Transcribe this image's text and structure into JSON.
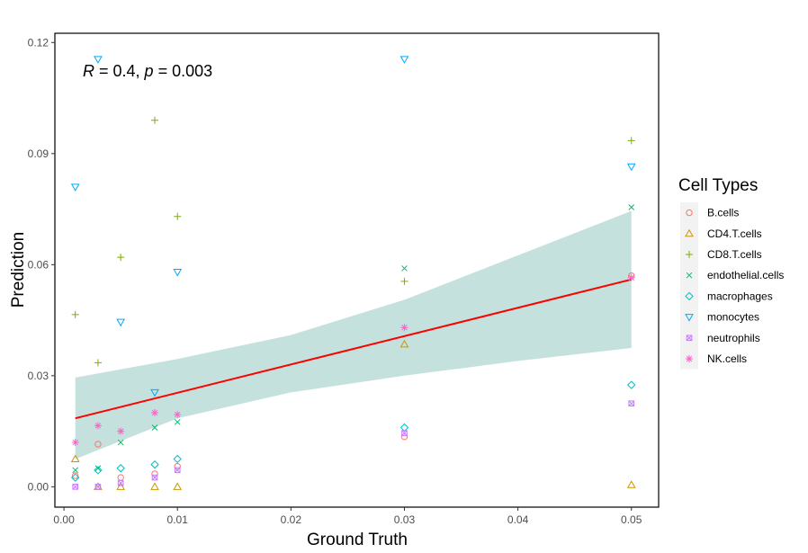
{
  "chart_data": {
    "type": "scatter",
    "xlabel": "Ground Truth",
    "ylabel": "Prediction",
    "xlim": [
      -0.0008,
      0.0524
    ],
    "ylim": [
      -0.0055,
      0.1225
    ],
    "xticks": [
      "0.00",
      "0.01",
      "0.02",
      "0.03",
      "0.04",
      "0.05"
    ],
    "xtick_values": [
      0,
      0.01,
      0.02,
      0.03,
      0.04,
      0.05
    ],
    "yticks": [
      "0.00",
      "0.03",
      "0.06",
      "0.09",
      "0.12"
    ],
    "ytick_values": [
      0,
      0.03,
      0.06,
      0.09,
      0.12
    ],
    "grid": false,
    "legend_position": "right",
    "annotation": {
      "r_sym": "R",
      "r_text": " = 0.4, ",
      "p_sym": "p",
      "p_text": " = 0.003"
    },
    "legend_title": "Cell Types",
    "regression": {
      "start": [
        0.001,
        0.0185
      ],
      "end": [
        0.05,
        0.056
      ],
      "color": "#ff0000",
      "band_color": "#8cc4bb",
      "band_upper": [
        [
          0.001,
          0.0295
        ],
        [
          0.01,
          0.0345
        ],
        [
          0.02,
          0.041
        ],
        [
          0.03,
          0.0505
        ],
        [
          0.04,
          0.0625
        ],
        [
          0.05,
          0.0745
        ]
      ],
      "band_lower": [
        [
          0.001,
          0.0075
        ],
        [
          0.01,
          0.0185
        ],
        [
          0.02,
          0.0255
        ],
        [
          0.03,
          0.03
        ],
        [
          0.04,
          0.034
        ],
        [
          0.05,
          0.0375
        ]
      ]
    },
    "series": [
      {
        "name": "B.cells",
        "shape": "circle",
        "color": "#f8766d",
        "points": [
          [
            0.001,
            0.003
          ],
          [
            0.003,
            0.0115
          ],
          [
            0.005,
            0.0025
          ],
          [
            0.008,
            0.0035
          ],
          [
            0.01,
            0.0055
          ],
          [
            0.03,
            0.0135
          ],
          [
            0.05,
            0.057
          ]
        ]
      },
      {
        "name": "CD4.T.cells",
        "shape": "triangle-up",
        "color": "#cd9600",
        "points": [
          [
            0.001,
            0.0075
          ],
          [
            0.003,
            0.0
          ],
          [
            0.005,
            0.0
          ],
          [
            0.008,
            0.0
          ],
          [
            0.01,
            0.0
          ],
          [
            0.03,
            0.0385
          ],
          [
            0.05,
            0.0005
          ]
        ]
      },
      {
        "name": "CD8.T.cells",
        "shape": "plus",
        "color": "#7cae00",
        "points": [
          [
            0.001,
            0.0465
          ],
          [
            0.003,
            0.0335
          ],
          [
            0.005,
            0.062
          ],
          [
            0.008,
            0.099
          ],
          [
            0.01,
            0.073
          ],
          [
            0.03,
            0.0555
          ],
          [
            0.05,
            0.0935
          ]
        ]
      },
      {
        "name": "endothelial.cells",
        "shape": "cross",
        "color": "#00be67",
        "points": [
          [
            0.001,
            0.0045
          ],
          [
            0.003,
            0.005
          ],
          [
            0.005,
            0.012
          ],
          [
            0.008,
            0.016
          ],
          [
            0.01,
            0.0175
          ],
          [
            0.03,
            0.059
          ],
          [
            0.05,
            0.0755
          ]
        ]
      },
      {
        "name": "macrophages",
        "shape": "diamond",
        "color": "#00bfc4",
        "points": [
          [
            0.001,
            0.0025
          ],
          [
            0.003,
            0.0045
          ],
          [
            0.005,
            0.005
          ],
          [
            0.008,
            0.006
          ],
          [
            0.01,
            0.0075
          ],
          [
            0.03,
            0.016
          ],
          [
            0.05,
            0.0275
          ]
        ]
      },
      {
        "name": "monocytes",
        "shape": "triangle-down",
        "color": "#00a9ff",
        "points": [
          [
            0.001,
            0.081
          ],
          [
            0.003,
            0.1155
          ],
          [
            0.005,
            0.0445
          ],
          [
            0.008,
            0.0255
          ],
          [
            0.01,
            0.058
          ],
          [
            0.03,
            0.1155
          ],
          [
            0.05,
            0.0865
          ]
        ]
      },
      {
        "name": "neutrophils",
        "shape": "square-x",
        "color": "#c77cff",
        "points": [
          [
            0.001,
            0.0
          ],
          [
            0.003,
            0.0
          ],
          [
            0.005,
            0.001
          ],
          [
            0.008,
            0.0025
          ],
          [
            0.01,
            0.0045
          ],
          [
            0.03,
            0.0145
          ],
          [
            0.05,
            0.0225
          ]
        ]
      },
      {
        "name": "NK.cells",
        "shape": "asterisk",
        "color": "#ff61cc",
        "points": [
          [
            0.001,
            0.012
          ],
          [
            0.003,
            0.0165
          ],
          [
            0.005,
            0.015
          ],
          [
            0.008,
            0.02
          ],
          [
            0.01,
            0.0195
          ],
          [
            0.03,
            0.043
          ],
          [
            0.05,
            0.0565
          ]
        ]
      }
    ]
  }
}
